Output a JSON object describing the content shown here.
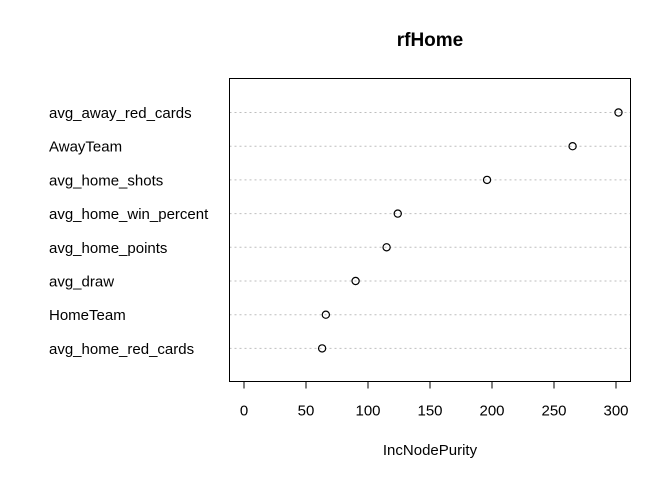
{
  "chart_data": {
    "type": "scatter",
    "title": "rfHome",
    "xlabel": "IncNodePurity",
    "ylabel": "",
    "xlim": [
      0,
      310
    ],
    "xticks": [
      0,
      50,
      100,
      150,
      200,
      250,
      300
    ],
    "grid": "horizontal-dotted",
    "categories": [
      "avg_away_red_cards",
      "AwayTeam",
      "avg_home_shots",
      "avg_home_win_percent",
      "avg_home_points",
      "avg_draw",
      "HomeTeam",
      "avg_home_red_cards"
    ],
    "values": [
      302,
      265,
      196,
      124,
      115,
      90,
      66,
      63
    ]
  }
}
